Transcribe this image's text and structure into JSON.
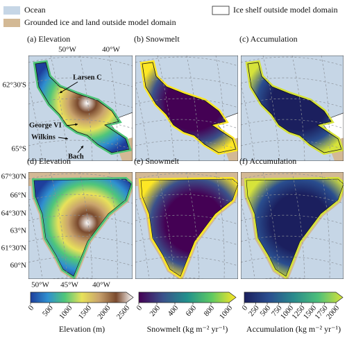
{
  "legend": [
    {
      "label": "Ocean",
      "color": "#c6d6e6"
    },
    {
      "label": "Grounded ice and land outside model domain",
      "color": "#d3b995"
    },
    {
      "label": "Ice shelf outside model domain",
      "color": "#ffffff"
    }
  ],
  "panels": [
    {
      "title": "(a) Elevation"
    },
    {
      "title": "(b) Snowmelt"
    },
    {
      "title": "(c) Accumulation"
    },
    {
      "title": "(d) Elevation"
    },
    {
      "title": "(e) Snowmelt"
    },
    {
      "title": "(f) Accumulation"
    }
  ],
  "axes": {
    "top_lon": [
      "50°W",
      "40°W"
    ],
    "south_lat": [
      "62°30'S",
      "65°S"
    ],
    "north_lat": [
      "67°30'N",
      "66°N",
      "64°30'N",
      "63°N",
      "61°30'N",
      "60°N"
    ],
    "bottom_lon": [
      "50°W",
      "45°W",
      "40°W"
    ]
  },
  "annotations": [
    "Larsen C",
    "George VI",
    "Wilkins",
    "Bach"
  ],
  "colorbars": [
    {
      "label": "Elevation (m)",
      "lim": [
        0,
        2500
      ],
      "ticks": [
        0,
        500,
        1000,
        1500,
        2000,
        2500
      ],
      "colors": [
        "#1e3f9c",
        "#2f8fd0",
        "#4fc67a",
        "#e8e25a",
        "#c9a36d",
        "#7a4a2e",
        "#ffffff"
      ]
    },
    {
      "label": "Snowmelt (kg m⁻² yr⁻¹)",
      "lim": [
        0,
        1000
      ],
      "ticks": [
        0,
        200,
        400,
        600,
        800,
        1000
      ],
      "colors": [
        "#440154",
        "#3b528b",
        "#21918c",
        "#5ec962",
        "#fde725"
      ]
    },
    {
      "label": "Accumulation (kg m⁻² yr⁻¹)",
      "lim": [
        0,
        2000
      ],
      "ticks": [
        0,
        250,
        500,
        750,
        1000,
        1250,
        1500,
        1750,
        2000
      ],
      "colors": [
        "#1b1f5e",
        "#2a4e8f",
        "#2a8a8c",
        "#4cbf7a",
        "#d6e33a"
      ]
    }
  ]
}
